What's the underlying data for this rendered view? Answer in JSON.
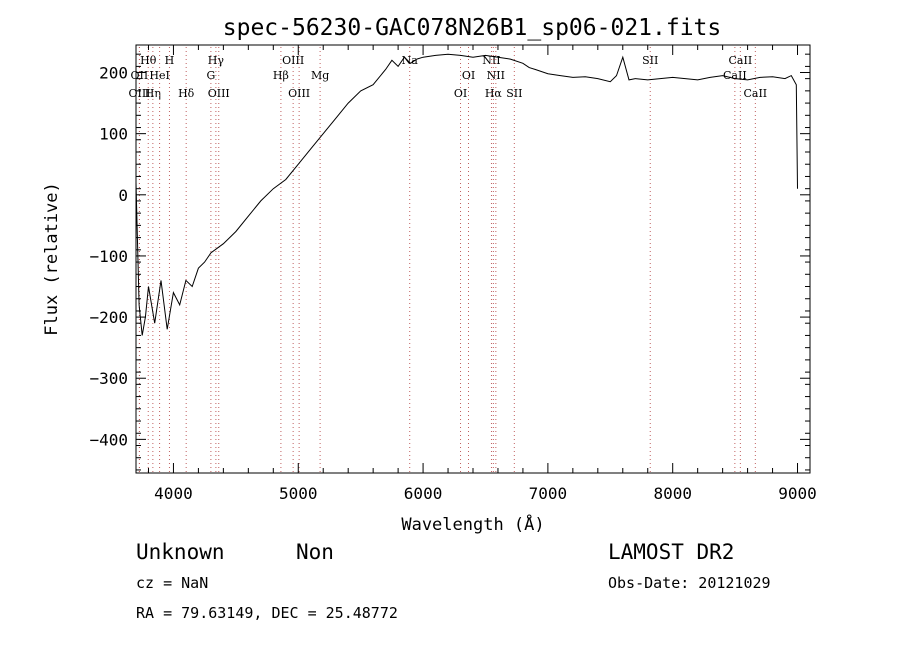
{
  "chart_data": {
    "type": "line",
    "title": "spec-56230-GAC078N26B1_sp06-021.fits",
    "xlabel": "Wavelength (Å)",
    "ylabel": "Flux (relative)",
    "xlim": [
      3700,
      9100
    ],
    "ylim": [
      -455,
      245
    ],
    "xticks": [
      4000,
      5000,
      6000,
      7000,
      8000,
      9000
    ],
    "yticks": [
      -400,
      -300,
      -200,
      -100,
      0,
      100,
      200
    ],
    "xtick_labels": [
      "4000",
      "5000",
      "6000",
      "7000",
      "8000",
      "9000"
    ],
    "ytick_labels": [
      "−400",
      "−300",
      "−200",
      "−100",
      "0",
      "100",
      "200"
    ],
    "grid": false,
    "line_color": "#000000",
    "marker_color": "#c06060",
    "series": [
      {
        "x": [
          3700,
          3725,
          3750,
          3775,
          3800,
          3850,
          3900,
          3950,
          4000,
          4050,
          4100,
          4150,
          4200,
          4250,
          4300,
          4400,
          4500,
          4600,
          4700,
          4800,
          4900,
          5000,
          5100,
          5200,
          5300,
          5400,
          5500,
          5600,
          5700,
          5750,
          5800,
          5850,
          5900,
          5950,
          6000,
          6100,
          6200,
          6300,
          6400,
          6500,
          6600,
          6700,
          6800,
          6850,
          6900,
          7000,
          7100,
          7200,
          7300,
          7400,
          7500,
          7550,
          7600,
          7650,
          7700,
          7800,
          7900,
          8000,
          8100,
          8200,
          8300,
          8400,
          8500,
          8600,
          8700,
          8800,
          8900,
          8950,
          8990,
          9000
        ],
        "y": [
          20,
          -180,
          -230,
          -200,
          -150,
          -210,
          -140,
          -220,
          -160,
          -180,
          -140,
          -150,
          -120,
          -110,
          -95,
          -80,
          -60,
          -35,
          -10,
          10,
          25,
          50,
          75,
          100,
          125,
          150,
          170,
          180,
          205,
          220,
          210,
          225,
          215,
          222,
          225,
          228,
          230,
          228,
          225,
          228,
          225,
          222,
          215,
          208,
          205,
          198,
          195,
          192,
          193,
          190,
          185,
          195,
          225,
          188,
          190,
          188,
          190,
          192,
          190,
          188,
          192,
          195,
          190,
          188,
          192,
          193,
          190,
          195,
          180,
          10
        ]
      }
    ],
    "line_markers": [
      {
        "label": "Hθ",
        "x": 3798,
        "row": 1
      },
      {
        "label": "OII",
        "x": 3727,
        "row": 2
      },
      {
        "label": "OIII",
        "x": 3728,
        "row": 3
      },
      {
        "label": "Hη",
        "x": 3835,
        "row": 3
      },
      {
        "label": "HeI",
        "x": 3889,
        "row": 2
      },
      {
        "label": "H",
        "x": 3968,
        "row": 1
      },
      {
        "label": "Hδ",
        "x": 4102,
        "row": 3
      },
      {
        "label": "Hγ",
        "x": 4340,
        "row": 1
      },
      {
        "label": "G",
        "x": 4300,
        "row": 2
      },
      {
        "label": "OIII",
        "x": 4363,
        "row": 3
      },
      {
        "label": "OIII",
        "x": 4959,
        "row": 1
      },
      {
        "label": "Hβ",
        "x": 4861,
        "row": 2
      },
      {
        "label": "OIII",
        "x": 5007,
        "row": 3
      },
      {
        "label": "Mg",
        "x": 5175,
        "row": 2
      },
      {
        "label": "Na",
        "x": 5893,
        "row": 1
      },
      {
        "label": "OI",
        "x": 6300,
        "row": 3
      },
      {
        "label": "OI",
        "x": 6364,
        "row": 2
      },
      {
        "label": "NII",
        "x": 6548,
        "row": 1
      },
      {
        "label": "NII",
        "x": 6583,
        "row": 2
      },
      {
        "label": "Hα",
        "x": 6563,
        "row": 3
      },
      {
        "label": "SII",
        "x": 6731,
        "row": 3
      },
      {
        "label": "SII",
        "x": 7820,
        "row": 1
      },
      {
        "label": "CaII",
        "x": 8542,
        "row": 1
      },
      {
        "label": "CaII",
        "x": 8498,
        "row": 2
      },
      {
        "label": "CaII",
        "x": 8662,
        "row": 3
      }
    ]
  },
  "info": {
    "class": "Unknown",
    "subclass": "Non",
    "survey": "LAMOST DR2",
    "cz": "cz = NaN",
    "obsdate": "Obs-Date: 20121029",
    "radec": "RA =  79.63149, DEC =  25.48772"
  }
}
